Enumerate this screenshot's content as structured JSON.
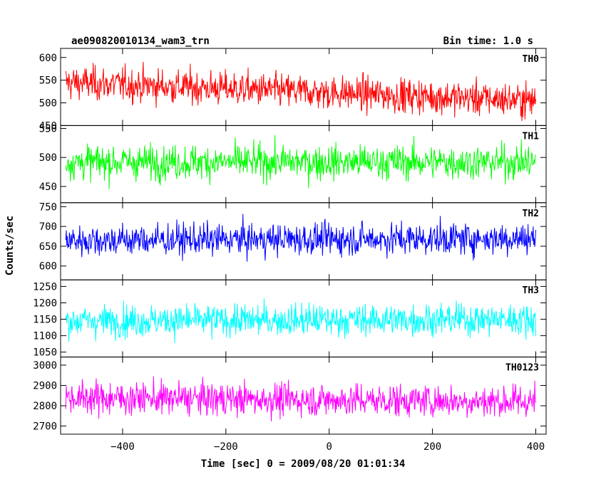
{
  "header": {
    "title": "ae090820010134_wam3_trn",
    "bin_time": "Bin time: 1.0 s"
  },
  "chart_data": {
    "type": "line",
    "title": "ae090820010134_wam3_trn",
    "xlabel": "Time [sec] 0 = 2009/08/20 01:01:34",
    "ylabel": "Counts/sec",
    "xlim": [
      -520,
      420
    ],
    "x_ticks": [
      -400,
      -200,
      0,
      200,
      400
    ],
    "x_tick_labels": [
      "−400",
      "−200",
      "0",
      "200",
      "400"
    ],
    "x_range_data": [
      -510,
      400
    ],
    "grid": false,
    "panels": [
      {
        "name": "TH0",
        "color": "#ff0000",
        "ylim": [
          450,
          620
        ],
        "yticks": [
          450,
          500,
          550,
          600
        ],
        "mean_start": 545,
        "mean_end": 505,
        "noise": 28
      },
      {
        "name": "TH1",
        "color": "#00ff00",
        "ylim": [
          422,
          555
        ],
        "yticks": [
          450,
          500,
          550
        ],
        "mean_start": 492,
        "mean_end": 492,
        "noise": 22
      },
      {
        "name": "TH2",
        "color": "#0000ff",
        "ylim": [
          565,
          760
        ],
        "yticks": [
          600,
          650,
          700,
          750
        ],
        "mean_start": 665,
        "mean_end": 670,
        "noise": 30
      },
      {
        "name": "TH3",
        "color": "#00ffff",
        "ylim": [
          1035,
          1270
        ],
        "yticks": [
          1050,
          1100,
          1150,
          1200,
          1250
        ],
        "mean_start": 1145,
        "mean_end": 1150,
        "noise": 36
      },
      {
        "name": "TH0123",
        "color": "#ff00ff",
        "ylim": [
          2660,
          3040
        ],
        "yticks": [
          2700,
          2800,
          2900,
          3000
        ],
        "mean_start": 2840,
        "mean_end": 2820,
        "noise": 60
      }
    ]
  }
}
